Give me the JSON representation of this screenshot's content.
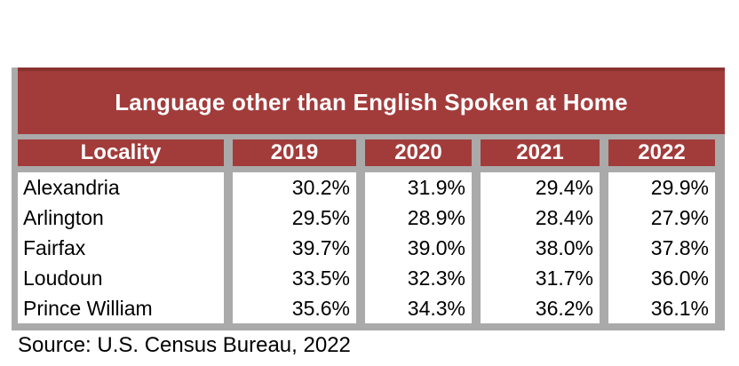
{
  "title": "Language other than English Spoken at Home",
  "source": "Source: U.S. Census Bureau, 2022",
  "colors": {
    "accent_maroon": "#a23c3b",
    "accent_maroon_dark_edge": "#8a3230",
    "border_gray": "#aaaaaa",
    "header_text": "#ffffff",
    "body_text": "#000000",
    "background": "#ffffff"
  },
  "chart_data": {
    "type": "table",
    "title": "Language other than English Spoken at Home",
    "columns": [
      "Locality",
      "2019",
      "2020",
      "2021",
      "2022"
    ],
    "rows": [
      [
        "Alexandria",
        "30.2%",
        "31.9%",
        "29.4%",
        "29.9%"
      ],
      [
        "Arlington",
        "29.5%",
        "28.9%",
        "28.4%",
        "27.9%"
      ],
      [
        "Fairfax",
        "39.7%",
        "39.0%",
        "38.0%",
        "37.8%"
      ],
      [
        "Loudoun",
        "33.5%",
        "32.3%",
        "31.7%",
        "36.0%"
      ],
      [
        "Prince William",
        "35.6%",
        "34.3%",
        "36.2%",
        "36.1%"
      ]
    ],
    "source": "Source: U.S. Census Bureau, 2022",
    "layout": {
      "header_position": "top",
      "value_alignment": "right",
      "grid_color": "#aaaaaa"
    }
  }
}
